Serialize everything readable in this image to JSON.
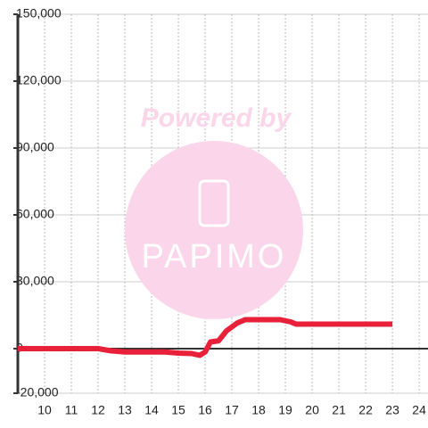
{
  "chart_data": {
    "type": "line",
    "watermark": {
      "line1": "Powered by",
      "line2": "PAPIMO"
    },
    "x": [
      9,
      12,
      12.5,
      13,
      14.5,
      15,
      15.5,
      15.8,
      16,
      16.2,
      16.5,
      16.8,
      17.2,
      17.5,
      18.8,
      19.2,
      19.4,
      23
    ],
    "series": [
      {
        "color": "#e8203a",
        "values": [
          0,
          0,
          -1000,
          -1500,
          -1500,
          -2000,
          -2200,
          -3000,
          -1500,
          3000,
          3500,
          8000,
          11500,
          13000,
          13000,
          12000,
          11000,
          11000
        ]
      }
    ],
    "xlim": [
      9,
      24.33
    ],
    "xticks": [
      10,
      11,
      12,
      13,
      14,
      15,
      16,
      17,
      18,
      19,
      20,
      21,
      22,
      23,
      24
    ],
    "ylim": [
      -20000,
      150000
    ],
    "yticks": [
      {
        "value": 150000,
        "label": "150,000"
      },
      {
        "value": 120000,
        "label": "120,000"
      },
      {
        "value": 90000,
        "label": "90,000"
      },
      {
        "value": 60000,
        "label": "60,000"
      },
      {
        "value": 30000,
        "label": "30,000"
      },
      0,
      {
        "value": -20000,
        "label": "-20,000"
      }
    ],
    "grid": true
  }
}
